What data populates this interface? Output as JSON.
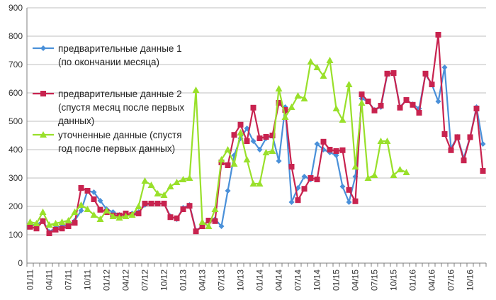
{
  "chart_data": {
    "type": "line",
    "title": "",
    "xlabel": "",
    "ylabel": "",
    "ylim": [
      0,
      900
    ],
    "yticks": [
      0,
      100,
      200,
      300,
      400,
      500,
      600,
      700,
      800,
      900
    ],
    "grid": true,
    "legend_position": "top-left",
    "x_tick_labels": [
      "01/11",
      "04/11",
      "07/11",
      "10/11",
      "01/12",
      "04/12",
      "07/12",
      "10/12",
      "01/13",
      "04/13",
      "07/13",
      "10/13",
      "01/14",
      "04/14",
      "07/14",
      "10/14",
      "01/15",
      "04/15",
      "07/15",
      "10/15",
      "01/16",
      "04/16",
      "07/16",
      "10/16"
    ],
    "x_tick_index": [
      0,
      3,
      6,
      9,
      12,
      15,
      18,
      21,
      24,
      27,
      30,
      33,
      36,
      39,
      42,
      45,
      48,
      51,
      54,
      57,
      60,
      63,
      66,
      69
    ],
    "n_points": 72,
    "colors": {
      "s1": "#4a90d9",
      "s2": "#c8234f",
      "s3": "#99e02a",
      "grid": "#bfbfbf",
      "axis": "#7f7f7f"
    },
    "legend": {
      "s1": [
        "предварительные данные 1",
        "(по окончании месяца)"
      ],
      "s2": [
        "предварительные данные 2",
        "(спустя месяц после первых",
        "данных)"
      ],
      "s3": [
        "уточненные данные (спустя",
        "год после первых данных)"
      ]
    },
    "series": [
      {
        "key": "s1",
        "values": [
          135,
          135,
          150,
          110,
          125,
          130,
          135,
          150,
          185,
          255,
          250,
          220,
          190,
          180,
          170,
          170,
          175,
          180,
          205,
          210,
          210,
          210,
          165,
          155,
          195,
          205,
          115,
          130,
          150,
          155,
          130,
          255,
          380,
          440,
          475,
          430,
          400,
          440,
          450,
          360,
          550,
          215,
          265,
          305,
          295,
          420,
          400,
          390,
          380,
          270,
          215,
          305,
          580,
          570,
          540,
          550,
          665,
          670,
          550,
          575,
          560,
          545,
          665,
          630,
          570,
          690,
          405,
          445,
          370,
          445,
          550,
          420
        ]
      },
      {
        "key": "s2",
        "values": [
          128,
          122,
          148,
          105,
          118,
          122,
          130,
          142,
          265,
          255,
          225,
          188,
          180,
          168,
          168,
          175,
          170,
          175,
          210,
          210,
          210,
          210,
          162,
          158,
          190,
          202,
          112,
          130,
          150,
          148,
          355,
          345,
          452,
          488,
          430,
          548,
          440,
          445,
          450,
          565,
          540,
          340,
          222,
          262,
          300,
          295,
          428,
          400,
          395,
          398,
          258,
          218,
          595,
          570,
          538,
          555,
          668,
          670,
          548,
          575,
          558,
          530,
          668,
          630,
          805,
          455,
          398,
          444,
          362,
          444,
          545,
          325
        ]
      },
      {
        "key": "s3",
        "values": [
          145,
          140,
          180,
          135,
          140,
          145,
          150,
          180,
          205,
          190,
          170,
          155,
          185,
          165,
          160,
          165,
          170,
          200,
          290,
          275,
          245,
          240,
          270,
          285,
          295,
          300,
          610,
          145,
          130,
          190,
          365,
          400,
          350,
          460,
          365,
          280,
          280,
          390,
          395,
          615,
          515,
          550,
          590,
          580,
          710,
          690,
          660,
          715,
          545,
          505,
          630,
          340,
          565,
          300,
          310,
          430,
          430,
          310,
          330,
          320
        ]
      }
    ]
  }
}
